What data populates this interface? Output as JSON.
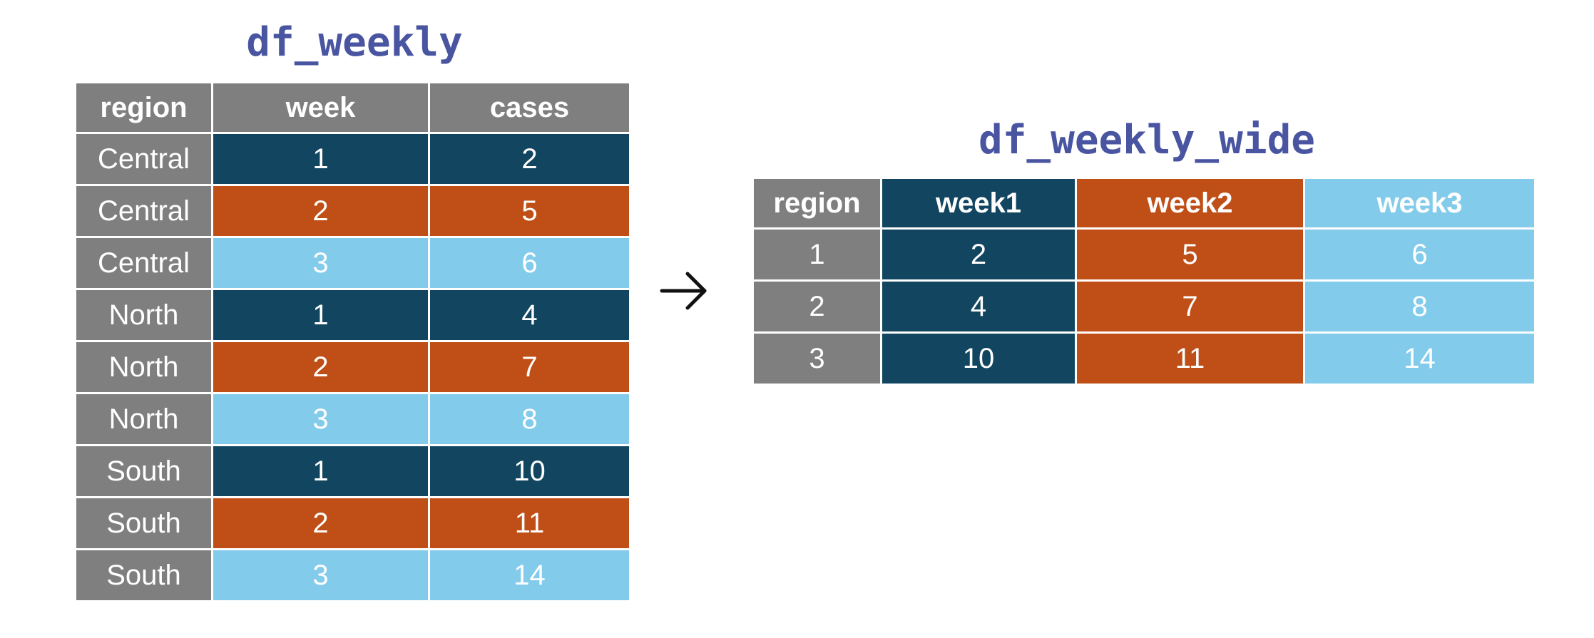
{
  "left_table": {
    "title": "df_weekly",
    "headers": [
      "region",
      "week",
      "cases"
    ],
    "rows": [
      [
        "Central",
        "1",
        "2"
      ],
      [
        "Central",
        "2",
        "5"
      ],
      [
        "Central",
        "3",
        "6"
      ],
      [
        "North",
        "1",
        "4"
      ],
      [
        "North",
        "2",
        "7"
      ],
      [
        "North",
        "3",
        "8"
      ],
      [
        "South",
        "1",
        "10"
      ],
      [
        "South",
        "2",
        "11"
      ],
      [
        "South",
        "3",
        "14"
      ]
    ]
  },
  "right_table": {
    "title": "df_weekly_wide",
    "headers": [
      "region",
      "week1",
      "week2",
      "week3"
    ],
    "rows": [
      [
        "1",
        "2",
        "5",
        "6"
      ],
      [
        "2",
        "4",
        "7",
        "8"
      ],
      [
        "3",
        "10",
        "11",
        "14"
      ]
    ]
  },
  "colors": {
    "title": "#4a55a2",
    "region_grey": "#7f7f7f",
    "week1_navy": "#124660",
    "week2_orange": "#bf4f16",
    "week3_sky": "#83cbeb"
  },
  "arrow_icon": "right-arrow-icon"
}
